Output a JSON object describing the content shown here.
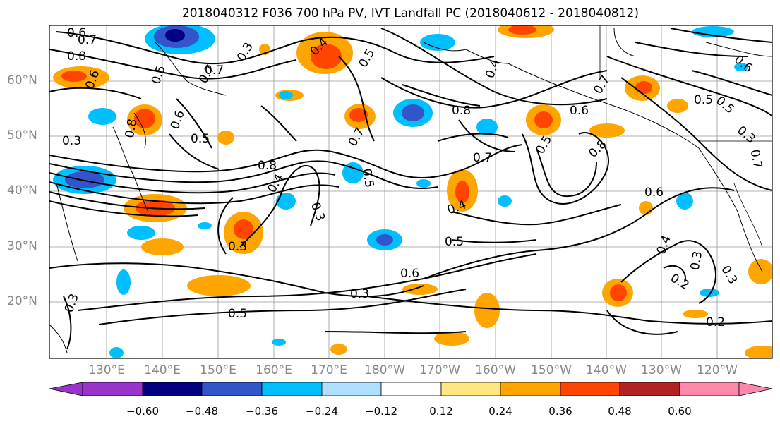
{
  "title": "2018040312 F036 700 hPa PV, IVT Landfall PC (2018040612 - 2018040812)",
  "lat_labels": [
    "60°N",
    "50°N",
    "40°N",
    "30°N",
    "20°N"
  ],
  "lon_labels": [
    "130°E",
    "140°E",
    "150°E",
    "160°E",
    "170°E",
    "180°W",
    "170°W",
    "160°W",
    "150°W",
    "140°W",
    "130°W",
    "120°W"
  ],
  "contour_labels": [
    "0.6",
    "0.7",
    "0.8",
    "0.6",
    "0.5",
    "0.7",
    "0.3",
    "0.4",
    "0.5",
    "0.3",
    "0.8",
    "0.6",
    "0.7",
    "0.8",
    "0.4",
    "0.5",
    "0.3",
    "0.5",
    "0.7",
    "0.5",
    "0.7",
    "0.8",
    "0.6",
    "0.4",
    "0.3",
    "0.4",
    "0.5",
    "0.6",
    "0.3",
    "0.5",
    "0.3",
    "0.6",
    "0.8",
    "0.7",
    "0.5",
    "0.6",
    "0.4",
    "0.3",
    "0.2",
    "0.3",
    "0.2",
    "0.5",
    "0.3",
    "0.7"
  ],
  "colorbar": {
    "tick_labels": [
      "−0.60",
      "−0.48",
      "−0.36",
      "−0.24",
      "−0.12",
      "0.12",
      "0.24",
      "0.36",
      "0.48",
      "0.60"
    ],
    "colors": [
      "#9933cc",
      "#000080",
      "#3355cc",
      "#00bfff",
      "#b0e0ff",
      "#ffffff",
      "#ffe680",
      "#ffa500",
      "#ff4500",
      "#b22222",
      "#ff88aa"
    ]
  }
}
